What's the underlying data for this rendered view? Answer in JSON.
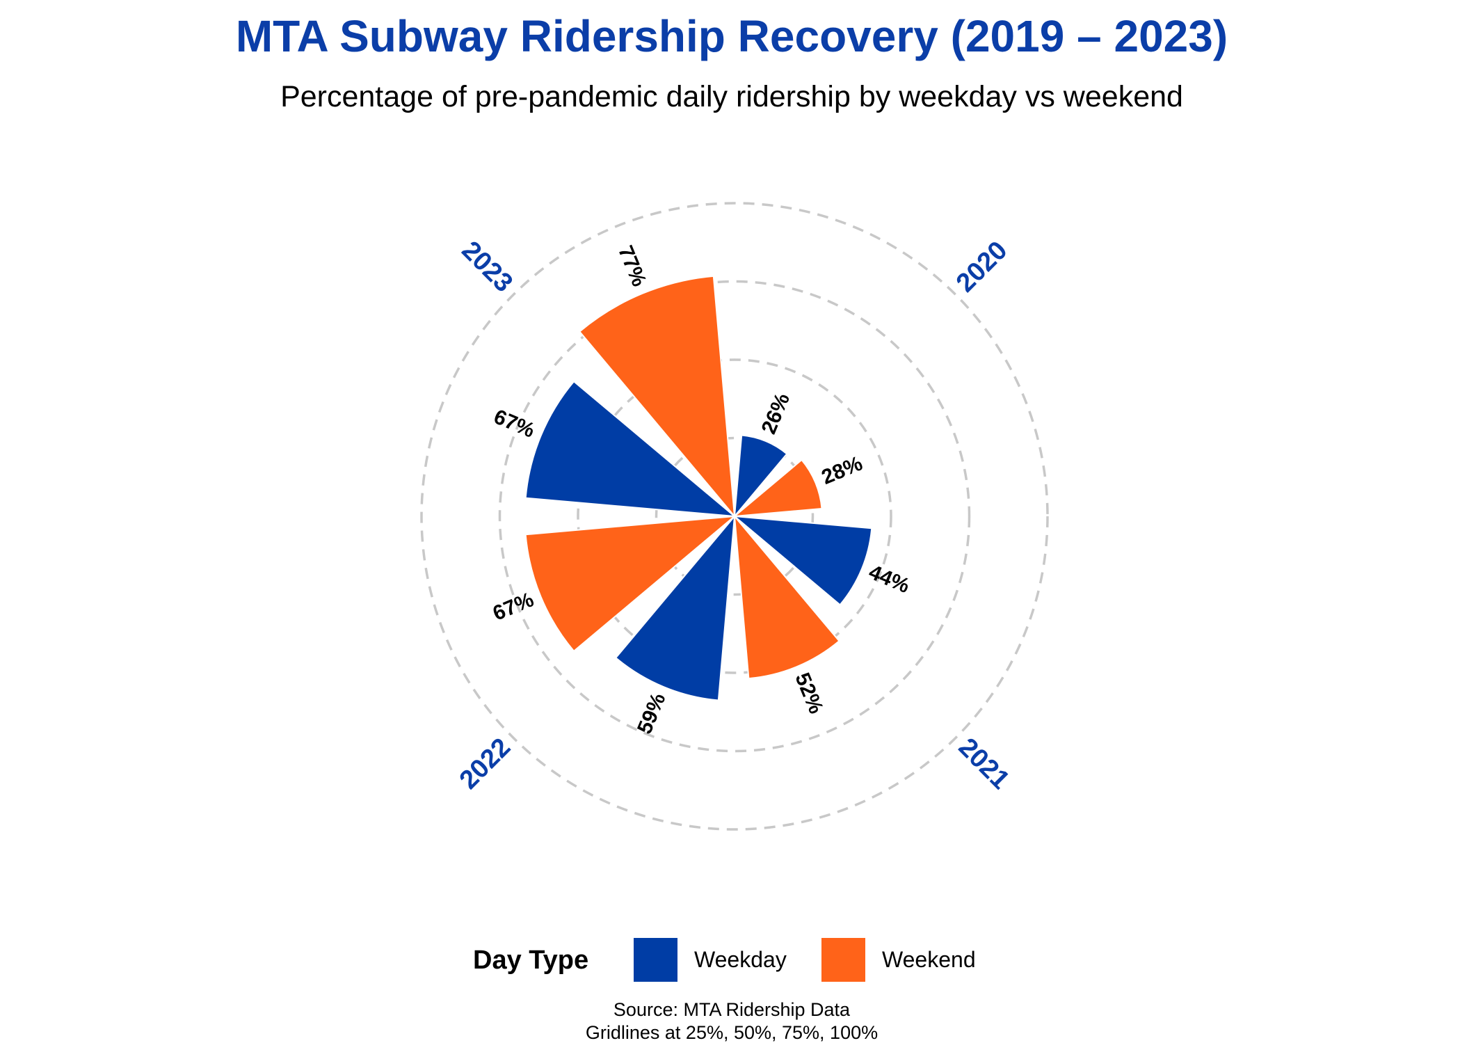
{
  "title": "MTA Subway Ridership Recovery (2019 – 2023)",
  "subtitle": "Percentage of pre-pandemic daily ridership by weekday vs weekend",
  "legend": {
    "title": "Day Type",
    "items": [
      {
        "label": "Weekday",
        "color": "#003DA5"
      },
      {
        "label": "Weekend",
        "color": "#FF6319"
      }
    ]
  },
  "caption": {
    "line1": "Source: MTA Ridership Data",
    "line2": "Gridlines at 25%, 50%, 75%, 100%"
  },
  "colors": {
    "title": "#0B3EA8",
    "year_label": "#0B3EA8",
    "gridline": "#c8c8c8",
    "text": "#000000"
  },
  "chart_data": {
    "type": "polar-bar",
    "title": "MTA Subway Ridership Recovery (2019 – 2023)",
    "subtitle": "Percentage of pre-pandemic daily ridership by weekday vs weekend",
    "categories": [
      "2020",
      "2021",
      "2022",
      "2023"
    ],
    "series": [
      {
        "name": "Weekday",
        "color": "#003DA5",
        "values": [
          26,
          44,
          59,
          67
        ]
      },
      {
        "name": "Weekend",
        "color": "#FF6319",
        "values": [
          28,
          52,
          67,
          77
        ]
      }
    ],
    "value_labels": {
      "Weekday": [
        "26%",
        "44%",
        "59%",
        "67%"
      ],
      "Weekend": [
        "28%",
        "52%",
        "67%",
        "77%"
      ]
    },
    "gridlines": [
      25,
      50,
      75,
      100
    ],
    "gridline_style": "dashed",
    "radial_max": 100,
    "legend_position": "bottom"
  }
}
